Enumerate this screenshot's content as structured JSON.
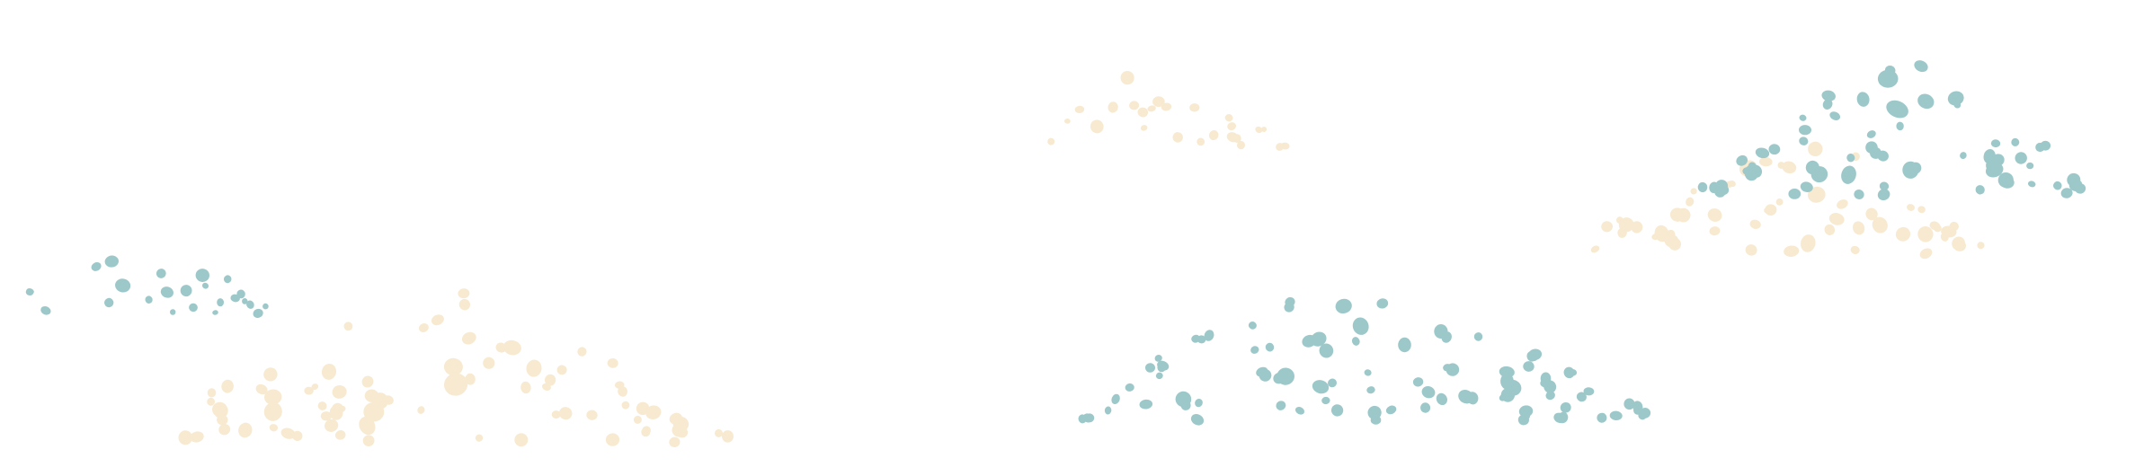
{
  "palette": {
    "background": "#ffffff",
    "teal": "#9cc8ca",
    "cream": "#f8ead0"
  },
  "clouds": [
    {
      "name": "cloud-teal-small-left",
      "color": "teal"
    },
    {
      "name": "cloud-cream-large-left",
      "color": "cream"
    },
    {
      "name": "cloud-cream-small-top-center",
      "color": "cream"
    },
    {
      "name": "cloud-teal-large-center",
      "color": "teal"
    },
    {
      "name": "cloud-cream-right",
      "color": "cream"
    },
    {
      "name": "cloud-teal-right",
      "color": "teal"
    }
  ]
}
